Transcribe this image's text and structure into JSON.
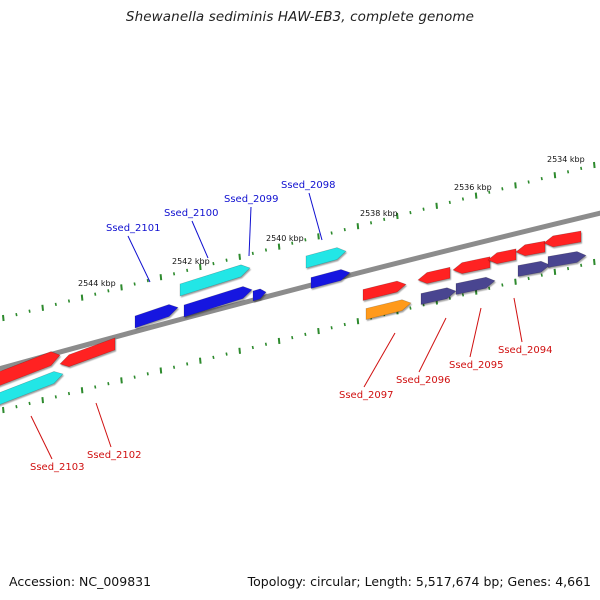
{
  "title": "Shewanella sediminis HAW-EB3, complete genome",
  "footer": {
    "accession": "Accession: NC_009831",
    "summary": "Topology: circular; Length: 5,517,674 bp; Genes: 4,661"
  },
  "scale_labels": [
    "2534 kbp",
    "2536 kbp",
    "2538 kbp",
    "2540 kbp",
    "2542 kbp",
    "2544 kbp"
  ],
  "gene_labels": [
    "Ssed_2098",
    "Ssed_2099",
    "Ssed_2100",
    "Ssed_2101",
    "Ssed_2094",
    "Ssed_2095",
    "Ssed_2096",
    "Ssed_2097",
    "Ssed_2102",
    "Ssed_2103"
  ],
  "colors": {
    "backbone": "#8c8c8c",
    "tick_major": "#2d8a2d",
    "tick_minor": "#2d8a2d",
    "gene_red": "#ff2020",
    "gene_cyan": "#22e6e6",
    "gene_blue": "#1818e0",
    "gene_navy": "#4a4490",
    "gene_orange": "#ff9a1a",
    "label_blue": "#1010d0",
    "label_red": "#d01010"
  }
}
